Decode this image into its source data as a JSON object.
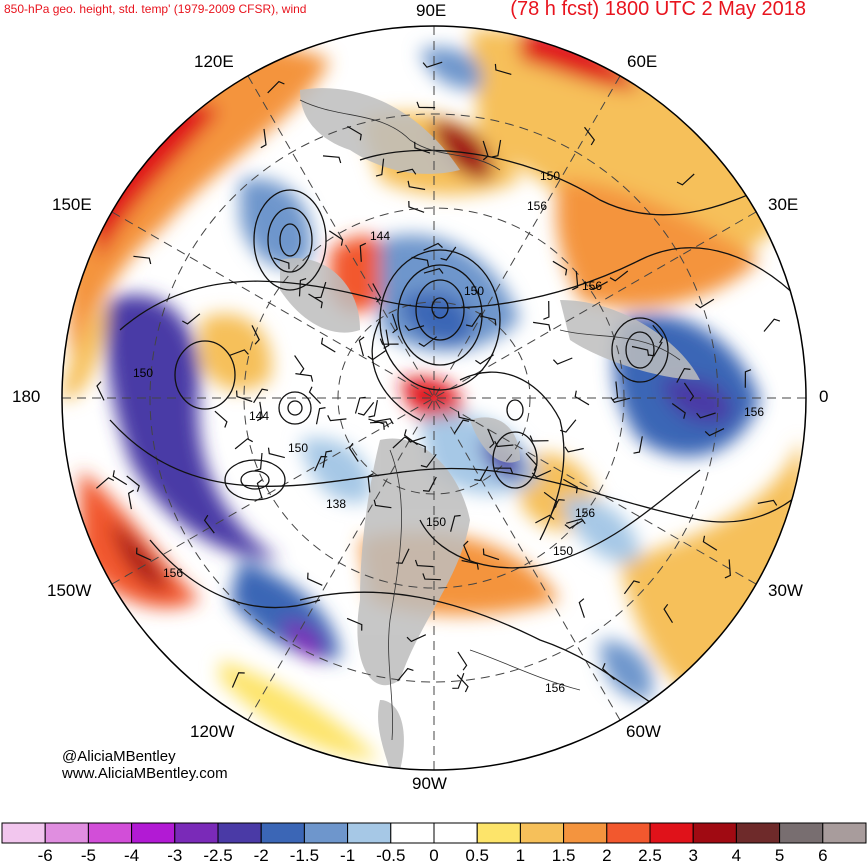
{
  "header": {
    "left_title": "850-hPa geo. height, std. temp' (1979-2009 CFSR), wind",
    "right_title": "(78 h fcst) 1800 UTC 2 May 2018"
  },
  "longitude_labels": {
    "e90": "90E",
    "e60": "60E",
    "e30": "30E",
    "zero": "0",
    "w30": "30W",
    "w60": "60W",
    "w90": "90W",
    "w120": "120W",
    "w150": "150W",
    "d180": "180",
    "e150": "150E",
    "e120": "120E"
  },
  "contour_labels": [
    "150",
    "156",
    "144",
    "150",
    "156",
    "150",
    "144",
    "150",
    "156",
    "138",
    "150",
    "156",
    "150",
    "156",
    "156"
  ],
  "credits": {
    "handle": "@AliciaMBentley",
    "site": "www.AliciaMBentley.com"
  },
  "colorbar": {
    "labels": [
      "-6",
      "-5",
      "-4",
      "-3",
      "-2.5",
      "-2",
      "-1.5",
      "-1",
      "-0.5",
      "0",
      "0.5",
      "1",
      "1.5",
      "2",
      "2.5",
      "3",
      "4",
      "5",
      "6"
    ],
    "colors": [
      "#f2c6ee",
      "#e08ee0",
      "#d24ed8",
      "#b21ad4",
      "#7a2ab8",
      "#4a3aa6",
      "#3b66b6",
      "#6e96cc",
      "#a6c8e6",
      "#ffffff",
      "#ffffff",
      "#fde46a",
      "#f6c05a",
      "#f4943e",
      "#f2582e",
      "#e0121a",
      "#a00a12",
      "#6e2a2a",
      "#786e70",
      "#a89c9c"
    ]
  }
}
